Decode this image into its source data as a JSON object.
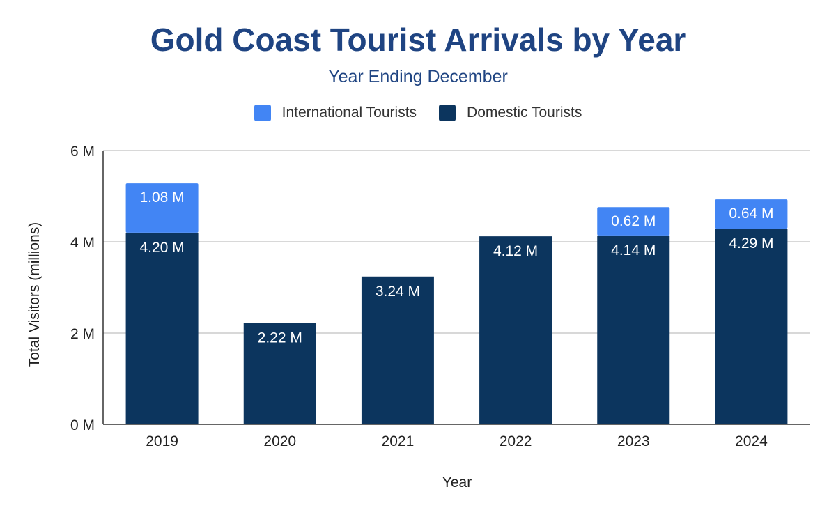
{
  "title": "Gold Coast Tourist Arrivals by Year",
  "subtitle": "Year Ending December",
  "colors": {
    "international": "#4285f4",
    "domestic": "#0c355e",
    "title": "#1f4482"
  },
  "chart_data": {
    "type": "bar",
    "stacked": true,
    "title": "Gold Coast Tourist Arrivals by Year",
    "subtitle": "Year Ending December",
    "xlabel": "Year",
    "ylabel": "Total Visitors (millions)",
    "ylim": [
      0,
      6
    ],
    "yticks": [
      "0 M",
      "2 M",
      "4 M",
      "6 M"
    ],
    "ytick_values": [
      0,
      2,
      4,
      6
    ],
    "grid": true,
    "legend_position": "top",
    "categories": [
      "2019",
      "2020",
      "2021",
      "2022",
      "2023",
      "2024"
    ],
    "series": [
      {
        "name": "Domestic Tourists",
        "values": [
          4.2,
          2.22,
          3.24,
          4.12,
          4.14,
          4.29
        ],
        "labels": [
          "4.20 M",
          "2.22 M",
          "3.24 M",
          "4.12 M",
          "4.14 M",
          "4.29 M"
        ]
      },
      {
        "name": "International Tourists",
        "values": [
          1.08,
          null,
          null,
          null,
          0.62,
          0.64
        ],
        "labels": [
          "1.08 M",
          "",
          "",
          "",
          "0.62 M",
          "0.64 M"
        ]
      }
    ]
  }
}
